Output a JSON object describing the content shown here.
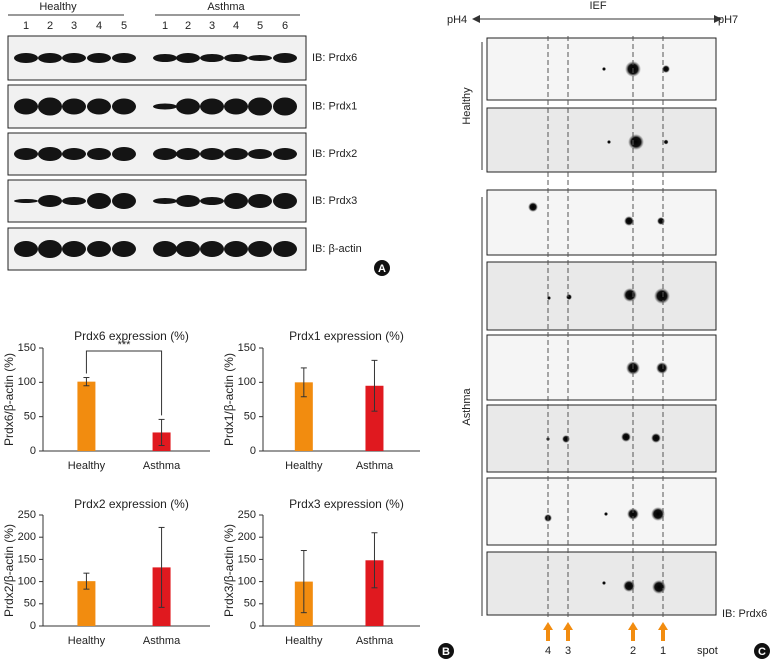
{
  "panel_a": {
    "label": "A",
    "groups": [
      "Healthy",
      "Asthma"
    ],
    "healthy_lanes": [
      1,
      2,
      3,
      4,
      5
    ],
    "asthma_lanes": [
      1,
      2,
      3,
      4,
      5,
      6
    ],
    "blots": [
      "IB: Prdx6",
      "IB: Prdx1",
      "IB: Prdx2",
      "IB: Prdx3",
      "IB: β-actin"
    ]
  },
  "panel_b": {
    "label": "B"
  },
  "chart_data": [
    {
      "type": "bar",
      "title": "Prdx6 expression (%)",
      "ylabel": "Prdx6/β-actin (%)",
      "categories": [
        "Healthy",
        "Asthma"
      ],
      "values": [
        101,
        27
      ],
      "errors": [
        6,
        19
      ],
      "colors": [
        "#f28c0f",
        "#e0191f"
      ],
      "ylim": [
        0,
        150
      ],
      "yticks": [
        0,
        50,
        100,
        150
      ],
      "annotation": "***"
    },
    {
      "type": "bar",
      "title": "Prdx1 expression (%)",
      "ylabel": "Prdx1/β-actin (%)",
      "categories": [
        "Healthy",
        "Asthma"
      ],
      "values": [
        100,
        95
      ],
      "errors": [
        21,
        37
      ],
      "colors": [
        "#f28c0f",
        "#e0191f"
      ],
      "ylim": [
        0,
        150
      ],
      "yticks": [
        0,
        50,
        100,
        150
      ]
    },
    {
      "type": "bar",
      "title": "Prdx2 expression (%)",
      "ylabel": "Prdx2/β-actin (%)",
      "categories": [
        "Healthy",
        "Asthma"
      ],
      "values": [
        101,
        132
      ],
      "errors": [
        18,
        90
      ],
      "colors": [
        "#f28c0f",
        "#e0191f"
      ],
      "ylim": [
        0,
        250
      ],
      "yticks": [
        0,
        50,
        100,
        150,
        200,
        250
      ]
    },
    {
      "type": "bar",
      "title": "Prdx3 expression (%)",
      "ylabel": "Prdx3/β-actin (%)",
      "categories": [
        "Healthy",
        "Asthma"
      ],
      "values": [
        100,
        148
      ],
      "errors": [
        70,
        62
      ],
      "colors": [
        "#f28c0f",
        "#e0191f"
      ],
      "ylim": [
        0,
        250
      ],
      "yticks": [
        0,
        50,
        100,
        150,
        200,
        250
      ]
    }
  ],
  "panel_c": {
    "label": "C",
    "title": "IEF",
    "ph_left": "pH4",
    "ph_right": "pH7",
    "groups": [
      "Healthy",
      "Asthma"
    ],
    "spots": [
      4,
      3,
      2,
      1
    ],
    "spot_label": "spot",
    "blot": "IB: Prdx6"
  }
}
